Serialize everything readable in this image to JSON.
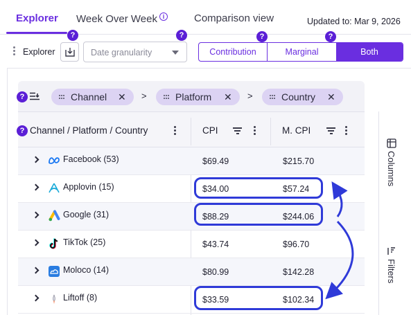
{
  "tabs": [
    {
      "label": "Explorer",
      "active": true
    },
    {
      "label": "Week Over Week",
      "active": false
    },
    {
      "label": "Comparison view",
      "active": false
    }
  ],
  "updated": "Updated to: Mar 9, 2026",
  "toolbar": {
    "explorer_label": "Explorer",
    "granularity_placeholder": "Date granularity",
    "segments": [
      "Contribution",
      "Marginal",
      "Both"
    ],
    "selected_segment": "Both"
  },
  "grouping": {
    "chips": [
      "Channel",
      "Platform",
      "Country"
    ]
  },
  "table": {
    "columns": [
      "Channel / Platform / Country",
      "CPI",
      "M. CPI"
    ],
    "rows": [
      {
        "name": "Facebook",
        "count": "(53)",
        "cpi": "$69.49",
        "mcpi": "$215.70",
        "logo": "meta-icon"
      },
      {
        "name": "Applovin",
        "count": "(15)",
        "cpi": "$34.00",
        "mcpi": "$57.24",
        "logo": "applovin-icon"
      },
      {
        "name": "Google",
        "count": "(31)",
        "cpi": "$88.29",
        "mcpi": "$244.06",
        "logo": "google-ads-icon"
      },
      {
        "name": "TikTok",
        "count": "(25)",
        "cpi": "$43.74",
        "mcpi": "$96.70",
        "logo": "tiktok-icon"
      },
      {
        "name": "Moloco",
        "count": "(14)",
        "cpi": "$80.99",
        "mcpi": "$142.28",
        "logo": "moloco-icon"
      },
      {
        "name": "Liftoff",
        "count": "(8)",
        "cpi": "$33.59",
        "mcpi": "$102.34",
        "logo": "liftoff-icon"
      }
    ]
  },
  "side_panel": {
    "columns_label": "Columns",
    "filters_label": "Filters"
  },
  "help_badge": "?",
  "colors": {
    "accent": "#6a2ee0",
    "highlight": "#2f3ad8",
    "chip": "#dcd3f3"
  }
}
